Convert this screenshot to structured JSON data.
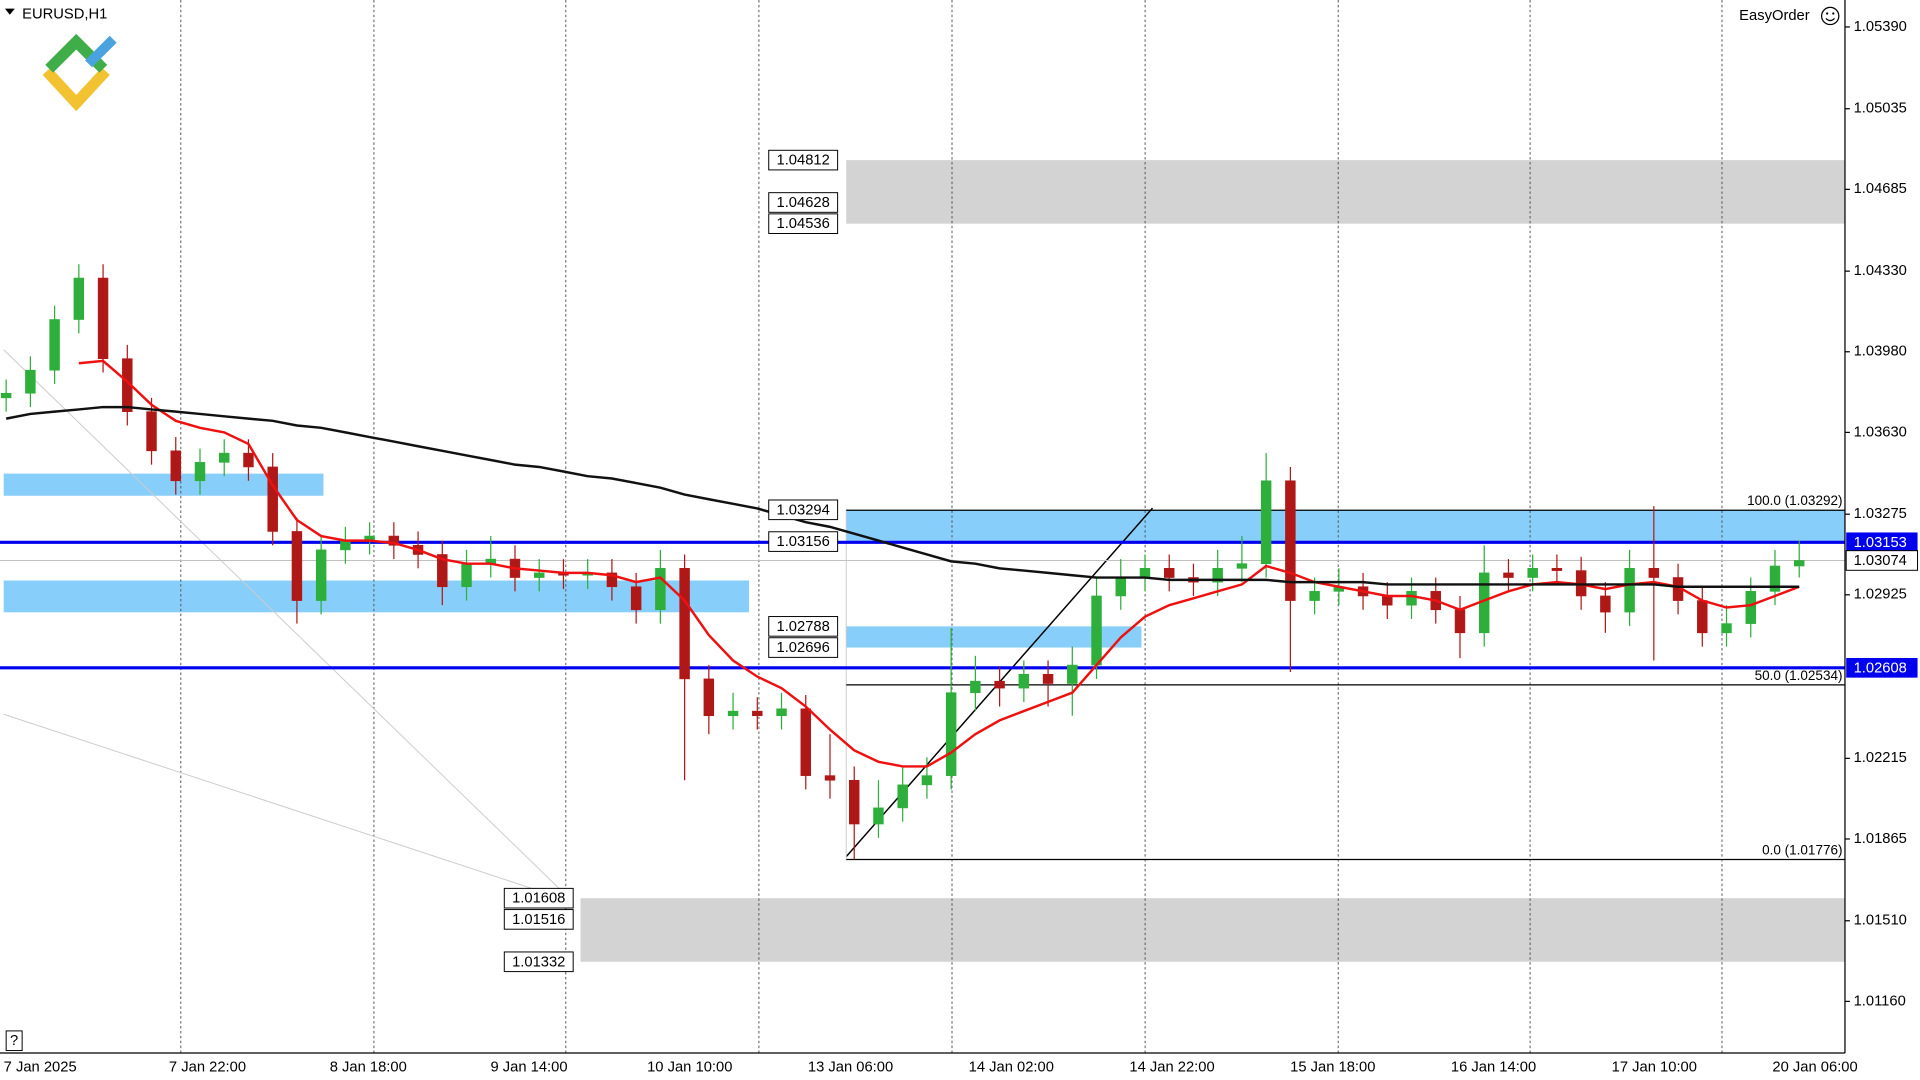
{
  "window_title": "EURUSD,H1",
  "toolbar_label": "EasyOrder",
  "help": "?",
  "chart_data": {
    "type": "candlestick",
    "up_color": "#2eae3a",
    "down_color": "#b01818",
    "ylim": [
      1.00936,
      1.05507
    ],
    "yticks": [
      {
        "value": 1.0539,
        "label": "1.05390"
      },
      1.05035,
      1.04685,
      {
        "value": 1.0433,
        "label": "1.04330"
      },
      {
        "value": 1.0398,
        "label": "1.03980"
      },
      {
        "value": 1.0363,
        "label": "1.03630"
      },
      1.03275,
      1.02925,
      1.02215,
      1.01865,
      {
        "value": 1.0151,
        "label": "1.01510"
      },
      {
        "value": 1.0116,
        "label": "1.01160"
      }
    ],
    "xtick_labels": [
      "7 Jan 2025",
      "7 Jan 22:00",
      "8 Jan 18:00",
      "9 Jan 14:00",
      "10 Jan 10:00",
      "13 Jan 06:00",
      "14 Jan 02:00",
      "14 Jan 22:00",
      "15 Jan 18:00",
      "16 Jan 14:00",
      "17 Jan 10:00",
      "20 Jan 06:00"
    ],
    "ohlc": [
      [
        1.0378,
        1.0386,
        1.0372,
        1.038
      ],
      [
        1.038,
        1.0396,
        1.0374,
        1.039
      ],
      [
        1.039,
        1.0418,
        1.0384,
        1.0412
      ],
      [
        1.0412,
        1.0436,
        1.0406,
        1.043
      ],
      [
        1.043,
        1.0436,
        1.0389,
        1.0395
      ],
      [
        1.0395,
        1.0401,
        1.0366,
        1.0372
      ],
      [
        1.0372,
        1.0378,
        1.0349,
        1.0355
      ],
      [
        1.0355,
        1.0361,
        1.0336,
        1.0342
      ],
      [
        1.0342,
        1.0356,
        1.0336,
        1.035
      ],
      [
        1.035,
        1.036,
        1.0344,
        1.0354
      ],
      [
        1.0354,
        1.036,
        1.0342,
        1.0348
      ],
      [
        1.0348,
        1.0354,
        1.0314,
        1.032
      ],
      [
        1.032,
        1.0326,
        1.028,
        1.029
      ],
      [
        1.029,
        1.0318,
        1.0284,
        1.0312
      ],
      [
        1.0312,
        1.0322,
        1.0306,
        1.0316
      ],
      [
        1.0316,
        1.0324,
        1.031,
        1.0318
      ],
      [
        1.0318,
        1.0324,
        1.0308,
        1.0314
      ],
      [
        1.0314,
        1.032,
        1.0304,
        1.031
      ],
      [
        1.031,
        1.0316,
        1.0288,
        1.0296
      ],
      [
        1.0296,
        1.0312,
        1.029,
        1.0306
      ],
      [
        1.0306,
        1.0318,
        1.03,
        1.0308
      ],
      [
        1.0308,
        1.0314,
        1.0294,
        1.03
      ],
      [
        1.03,
        1.0308,
        1.0294,
        1.0302
      ],
      [
        1.0302,
        1.0308,
        1.0295,
        1.0301
      ],
      [
        1.0301,
        1.0308,
        1.0295,
        1.0302
      ],
      [
        1.0302,
        1.0308,
        1.029,
        1.0296
      ],
      [
        1.0296,
        1.0302,
        1.028,
        1.0286
      ],
      [
        1.0286,
        1.0312,
        1.028,
        1.0304
      ],
      [
        1.0304,
        1.031,
        1.0212,
        1.0256
      ],
      [
        1.0256,
        1.0262,
        1.0232,
        1.024
      ],
      [
        1.024,
        1.025,
        1.0234,
        1.0242
      ],
      [
        1.0242,
        1.0248,
        1.0234,
        1.024
      ],
      [
        1.024,
        1.025,
        1.0234,
        1.0243
      ],
      [
        1.0243,
        1.0249,
        1.0208,
        1.0214
      ],
      [
        1.0214,
        1.0232,
        1.0204,
        1.0212
      ],
      [
        1.0212,
        1.0218,
        1.01776,
        1.0193
      ],
      [
        1.0193,
        1.0212,
        1.0187,
        1.02
      ],
      [
        1.02,
        1.0218,
        1.0194,
        1.021
      ],
      [
        1.021,
        1.0222,
        1.0204,
        1.0214
      ],
      [
        1.0214,
        1.0278,
        1.0208,
        1.025
      ],
      [
        1.025,
        1.0266,
        1.0242,
        1.0255
      ],
      [
        1.0255,
        1.0261,
        1.0244,
        1.0252
      ],
      [
        1.0252,
        1.0264,
        1.0246,
        1.0258
      ],
      [
        1.0258,
        1.0264,
        1.0244,
        1.0254
      ],
      [
        1.0254,
        1.027,
        1.024,
        1.0262
      ],
      [
        1.0262,
        1.03,
        1.0256,
        1.0292
      ],
      [
        1.0292,
        1.0308,
        1.0286,
        1.03
      ],
      [
        1.03,
        1.031,
        1.0294,
        1.0304
      ],
      [
        1.0304,
        1.031,
        1.0294,
        1.03
      ],
      [
        1.03,
        1.0306,
        1.0292,
        1.0298
      ],
      [
        1.0298,
        1.0312,
        1.0292,
        1.0304
      ],
      [
        1.0304,
        1.0318,
        1.0298,
        1.0306
      ],
      [
        1.0306,
        1.0354,
        1.03,
        1.0342
      ],
      [
        1.0342,
        1.0348,
        1.0259,
        1.029
      ],
      [
        1.029,
        1.03,
        1.0284,
        1.0294
      ],
      [
        1.0294,
        1.0304,
        1.0288,
        1.0296
      ],
      [
        1.0296,
        1.0302,
        1.0286,
        1.0292
      ],
      [
        1.0292,
        1.0298,
        1.0282,
        1.0288
      ],
      [
        1.0288,
        1.03,
        1.0282,
        1.0294
      ],
      [
        1.0294,
        1.03,
        1.028,
        1.0286
      ],
      [
        1.0286,
        1.0292,
        1.0265,
        1.0276
      ],
      [
        1.0276,
        1.0314,
        1.027,
        1.0302
      ],
      [
        1.0302,
        1.0308,
        1.0294,
        1.03
      ],
      [
        1.03,
        1.031,
        1.0294,
        1.0304
      ],
      [
        1.0304,
        1.031,
        1.0297,
        1.0303
      ],
      [
        1.0303,
        1.0309,
        1.0286,
        1.0292
      ],
      [
        1.0292,
        1.0298,
        1.0276,
        1.0285
      ],
      [
        1.0285,
        1.0312,
        1.0279,
        1.0304
      ],
      [
        1.0304,
        1.0331,
        1.0264,
        1.03
      ],
      [
        1.03,
        1.0306,
        1.0284,
        1.029
      ],
      [
        1.029,
        1.0296,
        1.027,
        1.0276
      ],
      [
        1.0276,
        1.0288,
        1.027,
        1.028
      ],
      [
        1.028,
        1.03,
        1.0274,
        1.0294
      ],
      [
        1.0294,
        1.0312,
        1.0288,
        1.0305
      ],
      [
        1.0305,
        1.0316,
        1.03,
        1.03074
      ]
    ],
    "series": [
      {
        "color": "#ee1111",
        "values": [
          null,
          null,
          null,
          1.0393,
          1.0394,
          1.0385,
          1.0375,
          1.0368,
          1.0365,
          1.0363,
          1.0358,
          1.034,
          1.0325,
          1.0318,
          1.0316,
          1.0316,
          1.0315,
          1.0312,
          1.0308,
          1.0306,
          1.0306,
          1.0304,
          1.0303,
          1.0302,
          1.0302,
          1.0301,
          1.0298,
          1.03,
          1.029,
          1.0275,
          1.0264,
          1.0257,
          1.0252,
          1.0244,
          1.0234,
          1.0225,
          1.022,
          1.0218,
          1.0218,
          1.0224,
          1.0232,
          1.0238,
          1.0242,
          1.0246,
          1.025,
          1.0262,
          1.0274,
          1.0283,
          1.0288,
          1.0291,
          1.0294,
          1.0297,
          1.0305,
          1.0302,
          1.0298,
          1.0296,
          1.0294,
          1.0292,
          1.0292,
          1.029,
          1.0286,
          1.029,
          1.0294,
          1.0297,
          1.0298,
          1.0297,
          1.0295,
          1.0297,
          1.0298,
          1.0296,
          1.029,
          1.0287,
          1.0288,
          1.0292,
          1.0296
        ]
      },
      {
        "color": "#111111",
        "values": [
          1.0369,
          1.0371,
          1.0372,
          1.0373,
          1.0374,
          1.0374,
          1.0373,
          1.0372,
          1.0371,
          1.037,
          1.0369,
          1.0368,
          1.0366,
          1.0365,
          1.0363,
          1.0361,
          1.0359,
          1.0357,
          1.0355,
          1.0353,
          1.0351,
          1.0349,
          1.0348,
          1.0346,
          1.0344,
          1.0343,
          1.0341,
          1.0339,
          1.0336,
          1.0334,
          1.0332,
          1.033,
          1.0327,
          1.0324,
          1.0322,
          1.0319,
          1.0316,
          1.0313,
          1.031,
          1.0307,
          1.0306,
          1.0304,
          1.0303,
          1.0302,
          1.0301,
          1.03,
          1.03,
          1.03,
          1.0299,
          1.0299,
          1.0299,
          1.0299,
          1.0299,
          1.0298,
          1.0298,
          1.0298,
          1.0298,
          1.0297,
          1.0297,
          1.0297,
          1.0297,
          1.0297,
          1.0297,
          1.0297,
          1.0297,
          1.0297,
          1.0297,
          1.0297,
          1.0297,
          1.0296,
          1.0296,
          1.0296,
          1.0296,
          1.0296,
          1.0296
        ]
      }
    ],
    "zones": [
      {
        "color": "#d3d3d3",
        "levels": [
          1.04812,
          1.04628,
          1.04536
        ]
      },
      {
        "color": "#87cefa",
        "levels": [
          1.03294,
          1.03156
        ]
      },
      {
        "color": "#87cefa",
        "levels": [
          1.02788,
          1.02696
        ]
      },
      {
        "color": "#d3d3d3",
        "levels": [
          1.01608,
          1.01516,
          1.01332
        ]
      }
    ],
    "plain_zones": [
      {
        "color": "#87cefa",
        "high": 1.03451,
        "low": 1.03355
      },
      {
        "color": "#87cefa",
        "high": 1.02987,
        "low": 1.02849
      }
    ],
    "fib_levels": [
      {
        "value": 1.03292,
        "label": "100.0 (1.03292)"
      },
      {
        "value": 1.02534,
        "label": "50.0 (1.02534)"
      },
      {
        "value": 1.01776,
        "label": "0.0 (1.01776)"
      }
    ],
    "hlines": [
      {
        "value": 1.03153,
        "color": "#0000ee"
      },
      {
        "value": 1.02608,
        "color": "#0000ee"
      }
    ],
    "last_price": 1.03074
  }
}
